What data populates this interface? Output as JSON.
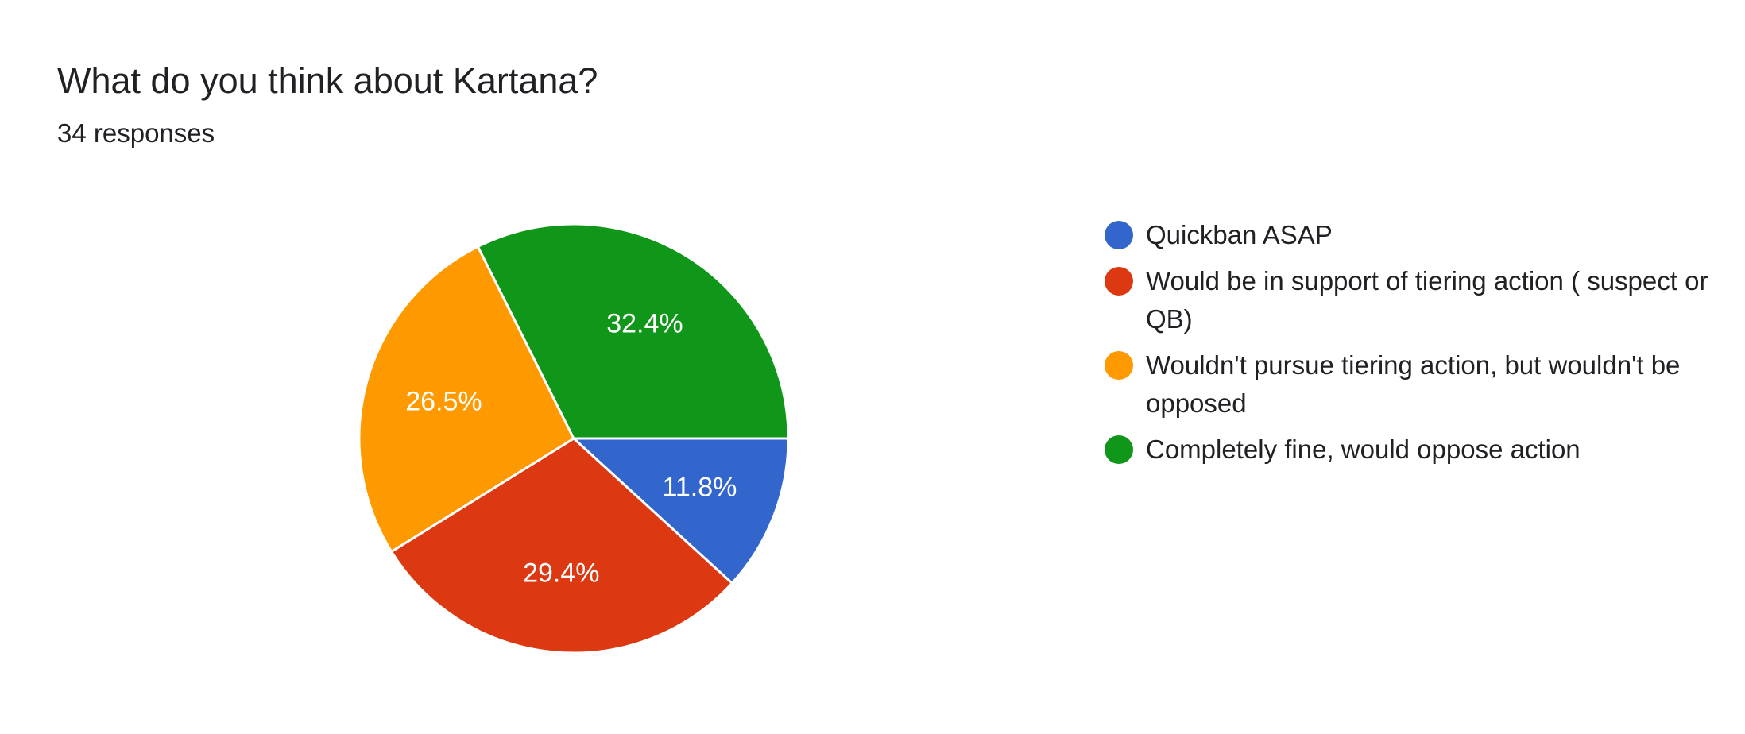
{
  "title": "What do you think about Kartana?",
  "subtitle": "34 responses",
  "chart_data": {
    "type": "pie",
    "title": "What do you think about Kartana?",
    "subtitle": "34 responses",
    "start": "3 o'clock, clockwise",
    "legend_position": "right",
    "slices": [
      {
        "label": "Quickban ASAP",
        "percent": 11.8,
        "value_label": "11.8%",
        "color": "#3366cc"
      },
      {
        "label": "Would be in support of tiering action ( suspect or QB)",
        "percent": 29.4,
        "value_label": "29.4%",
        "color": "#dc3912"
      },
      {
        "label": "Wouldn't pursue tiering action, but wouldn't be opposed",
        "percent": 26.5,
        "value_label": "26.5%",
        "color": "#ff9900"
      },
      {
        "label": "Completely fine, would oppose action",
        "percent": 32.4,
        "value_label": "32.4%",
        "color": "#109618"
      }
    ]
  }
}
